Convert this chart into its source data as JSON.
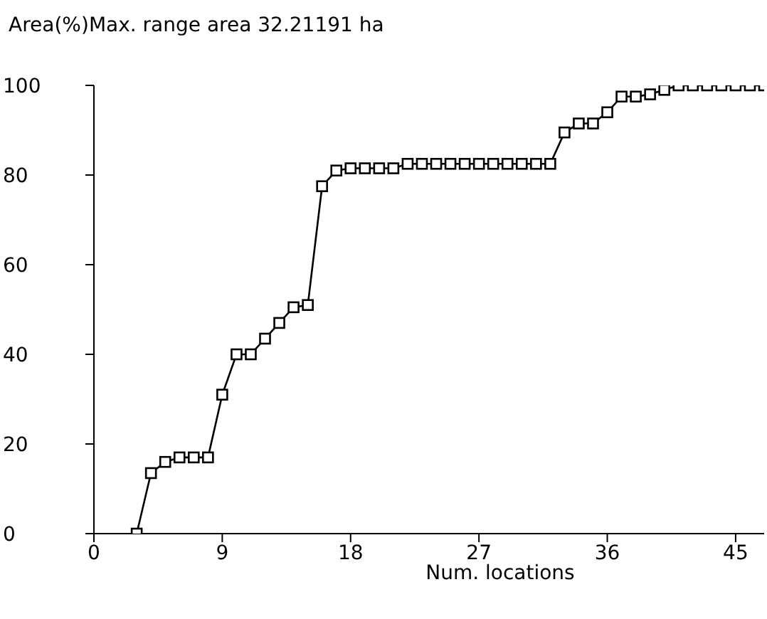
{
  "chart_data": {
    "type": "line",
    "title": "Max. range area 32.21191 ha",
    "ylabel": "Area(%)",
    "xlabel": "Num. locations",
    "x": [
      3,
      4,
      5,
      6,
      7,
      8,
      9,
      10,
      11,
      12,
      13,
      14,
      15,
      16,
      17,
      18,
      19,
      20,
      21,
      22,
      23,
      24,
      25,
      26,
      27,
      28,
      29,
      30,
      31,
      32,
      33,
      34,
      35,
      36,
      37,
      38,
      39,
      40,
      41,
      42,
      43,
      44,
      45,
      46,
      47
    ],
    "series": [
      {
        "color": "#000000",
        "values": [
          0,
          13.5,
          16,
          17,
          17,
          17,
          31,
          40,
          40,
          43.5,
          47,
          50.5,
          51,
          77.5,
          81,
          81.5,
          81.5,
          81.5,
          81.5,
          82.5,
          82.5,
          82.5,
          82.5,
          82.5,
          82.5,
          82.5,
          82.5,
          82.5,
          82.5,
          82.5,
          89.5,
          91.5,
          91.5,
          94,
          97.5,
          97.5,
          98,
          99,
          100,
          100,
          100,
          100,
          100,
          100,
          100
        ]
      }
    ],
    "xlim": [
      0,
      47
    ],
    "xticks": [
      0,
      9,
      18,
      27,
      36,
      45
    ],
    "ylim": [
      0,
      100
    ],
    "yticks": [
      0,
      20,
      40,
      60,
      80,
      100
    ],
    "grid": false,
    "legend": false,
    "marker": "square",
    "line_style": "solid"
  }
}
